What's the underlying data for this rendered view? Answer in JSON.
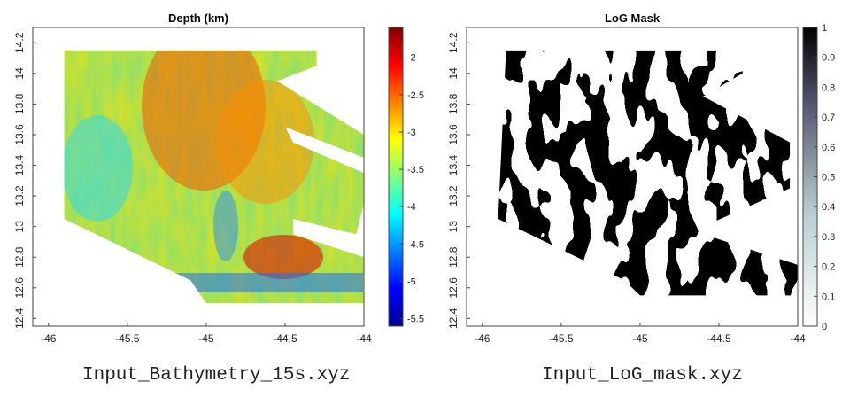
{
  "chart_data": [
    {
      "type": "heatmap",
      "title": "Depth (km)",
      "xlabel": "",
      "ylabel": "",
      "xlim": [
        -46.1,
        -44
      ],
      "ylim": [
        12.35,
        14.3
      ],
      "x_ticks": [
        -46,
        -45.5,
        -45,
        -44.5,
        -44
      ],
      "x_tick_labels": [
        "-46",
        "-45.5",
        "-45",
        "-44.5",
        "-44"
      ],
      "y_ticks": [
        12.4,
        12.6,
        12.8,
        13,
        13.2,
        13.4,
        13.6,
        13.8,
        14,
        14.2
      ],
      "y_tick_labels": [
        "12.4",
        "12.6",
        "12.8",
        "13",
        "13.2",
        "13.4",
        "13.6",
        "13.8",
        "14",
        "14.2"
      ],
      "colormap": "jet",
      "color_range": [
        -5.6,
        -1.6
      ],
      "colorbar_ticks": [
        -2,
        -2.5,
        -3,
        -3.5,
        -4,
        -4.5,
        -5,
        -5.5
      ],
      "colorbar_tick_labels": [
        "-2",
        "-2.5",
        "-3",
        "-3.5",
        "-4",
        "-4.5",
        "-5",
        "-5.5"
      ],
      "grid": false,
      "colorbar": "right",
      "caption": "Input_Bathymetry_15s.xyz"
    },
    {
      "type": "heatmap",
      "title": "LoG Mask",
      "xlabel": "",
      "ylabel": "",
      "xlim": [
        -46.1,
        -44
      ],
      "ylim": [
        12.35,
        14.3
      ],
      "x_ticks": [
        -46,
        -45.5,
        -45,
        -44.5,
        -44
      ],
      "x_tick_labels": [
        "-46",
        "-45.5",
        "-45",
        "-44.5",
        "-44"
      ],
      "y_ticks": [
        12.4,
        12.6,
        12.8,
        13,
        13.2,
        13.4,
        13.6,
        13.8,
        14,
        14.2
      ],
      "y_tick_labels": [
        "12.4",
        "12.6",
        "12.8",
        "13",
        "13.2",
        "13.4",
        "13.6",
        "13.8",
        "14",
        "14.2"
      ],
      "colormap": "bone (reversed)",
      "color_range": [
        0,
        1
      ],
      "colorbar_ticks": [
        1,
        0.9,
        0.8,
        0.7,
        0.6,
        0.5,
        0.4,
        0.3,
        0.2,
        0.1,
        0
      ],
      "colorbar_tick_labels": [
        "1",
        "0.9",
        "0.8",
        "0.7",
        "0.6",
        "0.5",
        "0.4",
        "0.3",
        "0.2",
        "0.1",
        "0"
      ],
      "grid": false,
      "colorbar": "right",
      "caption": "Input_LoG_mask.xyz"
    }
  ]
}
